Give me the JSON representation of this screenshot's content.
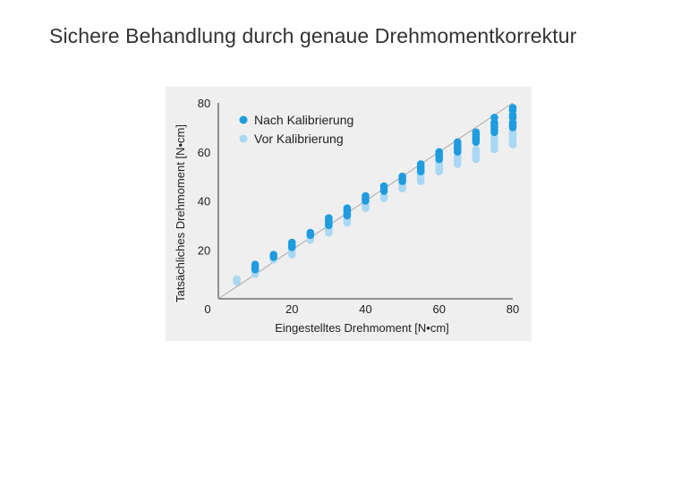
{
  "page": {
    "title": "Sichere Behandlung durch genaue Drehmomentkorrektur"
  },
  "chart_data": {
    "type": "scatter",
    "title": "",
    "xlabel": "Eingestelltes Drehmoment [N•cm]",
    "ylabel": "Tatsächliches Drehmoment [N•cm]",
    "xlim": [
      0,
      80
    ],
    "ylim": [
      0,
      80
    ],
    "x_ticks": [
      "0",
      "20",
      "40",
      "60",
      "80"
    ],
    "y_ticks": [
      "20",
      "40",
      "60",
      "80"
    ],
    "grid": false,
    "legend_position": "top-left",
    "reference_line": {
      "from": [
        0,
        0
      ],
      "to": [
        80,
        80
      ],
      "color": "#aaaaaa"
    },
    "series": [
      {
        "name": "Nach Kalibrierung",
        "color": "#1f9be0",
        "points": [
          [
            10,
            12
          ],
          [
            10,
            13
          ],
          [
            10,
            14
          ],
          [
            15,
            17
          ],
          [
            15,
            18
          ],
          [
            20,
            21
          ],
          [
            20,
            22
          ],
          [
            20,
            23
          ],
          [
            25,
            26
          ],
          [
            25,
            27
          ],
          [
            30,
            30
          ],
          [
            30,
            31
          ],
          [
            30,
            32
          ],
          [
            30,
            33
          ],
          [
            35,
            34
          ],
          [
            35,
            35
          ],
          [
            35,
            36
          ],
          [
            35,
            37
          ],
          [
            40,
            40
          ],
          [
            40,
            41
          ],
          [
            40,
            42
          ],
          [
            45,
            44
          ],
          [
            45,
            45
          ],
          [
            45,
            46
          ],
          [
            50,
            48
          ],
          [
            50,
            49
          ],
          [
            50,
            50
          ],
          [
            55,
            52
          ],
          [
            55,
            53
          ],
          [
            55,
            54
          ],
          [
            55,
            55
          ],
          [
            60,
            57
          ],
          [
            60,
            58
          ],
          [
            60,
            59
          ],
          [
            60,
            60
          ],
          [
            65,
            60
          ],
          [
            65,
            61
          ],
          [
            65,
            62
          ],
          [
            65,
            63
          ],
          [
            65,
            64
          ],
          [
            70,
            64
          ],
          [
            70,
            65
          ],
          [
            70,
            66
          ],
          [
            70,
            67
          ],
          [
            70,
            68
          ],
          [
            75,
            68
          ],
          [
            75,
            69
          ],
          [
            75,
            70
          ],
          [
            75,
            71
          ],
          [
            75,
            72
          ],
          [
            75,
            74
          ],
          [
            80,
            70
          ],
          [
            80,
            71
          ],
          [
            80,
            72
          ],
          [
            80,
            74
          ],
          [
            80,
            75
          ],
          [
            80,
            77
          ],
          [
            80,
            78
          ]
        ]
      },
      {
        "name": "Vor Kalibrierung",
        "color": "#a8d8f4",
        "points": [
          [
            5,
            7
          ],
          [
            5,
            8
          ],
          [
            10,
            10
          ],
          [
            10,
            11
          ],
          [
            15,
            16
          ],
          [
            15,
            17
          ],
          [
            20,
            18
          ],
          [
            20,
            19
          ],
          [
            20,
            20
          ],
          [
            25,
            24
          ],
          [
            25,
            25
          ],
          [
            30,
            27
          ],
          [
            30,
            28
          ],
          [
            30,
            29
          ],
          [
            35,
            31
          ],
          [
            35,
            32
          ],
          [
            35,
            33
          ],
          [
            40,
            37
          ],
          [
            40,
            38
          ],
          [
            45,
            41
          ],
          [
            45,
            42
          ],
          [
            50,
            45
          ],
          [
            50,
            46
          ],
          [
            50,
            47
          ],
          [
            55,
            48
          ],
          [
            55,
            49
          ],
          [
            55,
            50
          ],
          [
            55,
            51
          ],
          [
            60,
            52
          ],
          [
            60,
            53
          ],
          [
            60,
            54
          ],
          [
            60,
            55
          ],
          [
            60,
            56
          ],
          [
            65,
            55
          ],
          [
            65,
            56
          ],
          [
            65,
            57
          ],
          [
            65,
            58
          ],
          [
            70,
            57
          ],
          [
            70,
            58
          ],
          [
            70,
            59
          ],
          [
            70,
            60
          ],
          [
            70,
            61
          ],
          [
            75,
            61
          ],
          [
            75,
            62
          ],
          [
            75,
            63
          ],
          [
            75,
            64
          ],
          [
            75,
            65
          ],
          [
            75,
            66
          ],
          [
            80,
            63
          ],
          [
            80,
            64
          ],
          [
            80,
            65
          ],
          [
            80,
            66
          ],
          [
            80,
            67
          ],
          [
            80,
            68
          ],
          [
            80,
            69
          ]
        ]
      }
    ]
  }
}
